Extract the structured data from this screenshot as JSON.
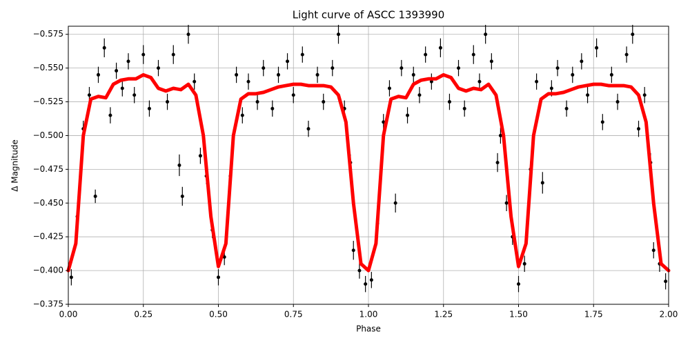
{
  "chart_data": {
    "type": "scatter",
    "title": "Light curve of ASCC 1393990",
    "xlabel": "Phase",
    "ylabel": "Δ Magnitude",
    "xlim": [
      0,
      2
    ],
    "ylim": [
      -0.375,
      -0.581
    ],
    "grid": true,
    "xticks": [
      {
        "value": 0,
        "label": "0.00"
      },
      0.25,
      {
        "value": 0.5,
        "label": "0.50"
      },
      0.75,
      {
        "value": 1,
        "label": "1.00"
      },
      1.25,
      {
        "value": 1.5,
        "label": "1.50"
      },
      1.75,
      {
        "value": 2,
        "label": "2.00"
      }
    ],
    "yticks": [
      {
        "value": -0.575,
        "label": "−0.575"
      },
      {
        "value": -0.55,
        "label": "−0.550"
      },
      {
        "value": -0.525,
        "label": "−0.525"
      },
      {
        "value": -0.5,
        "label": "−0.500"
      },
      {
        "value": -0.475,
        "label": "−0.475"
      },
      {
        "value": -0.45,
        "label": "−0.450"
      },
      {
        "value": -0.425,
        "label": "−0.425"
      },
      {
        "value": -0.4,
        "label": "−0.400"
      },
      {
        "value": -0.375,
        "label": "−0.375"
      }
    ],
    "series": [
      {
        "type": "errorbar",
        "color": "#000000",
        "x": [
          0.01,
          0.03,
          0.05,
          0.07,
          0.09,
          0.1,
          0.12,
          0.14,
          0.16,
          0.18,
          0.2,
          0.22,
          0.25,
          0.27,
          0.3,
          0.33,
          0.35,
          0.37,
          0.38,
          0.4,
          0.42,
          0.44,
          0.46,
          0.48,
          0.5,
          0.52,
          0.54,
          0.56,
          0.58,
          0.6,
          0.63,
          0.65,
          0.68,
          0.7,
          0.73,
          0.75,
          0.78,
          0.8,
          0.83,
          0.85,
          0.88,
          0.9,
          0.92,
          0.94,
          0.95,
          0.97,
          0.99,
          1.01,
          1.03,
          1.05,
          1.07,
          1.09,
          1.11,
          1.13,
          1.15,
          1.17,
          1.19,
          1.21,
          1.24,
          1.27,
          1.3,
          1.32,
          1.35,
          1.37,
          1.39,
          1.41,
          1.43,
          1.44,
          1.46,
          1.48,
          1.5,
          1.52,
          1.54,
          1.56,
          1.58,
          1.61,
          1.63,
          1.66,
          1.68,
          1.71,
          1.73,
          1.76,
          1.78,
          1.81,
          1.83,
          1.86,
          1.88,
          1.9,
          1.92,
          1.94,
          1.95,
          1.97,
          1.99
        ],
        "values": [
          -0.395,
          -0.44,
          -0.505,
          -0.53,
          -0.455,
          -0.545,
          -0.565,
          -0.515,
          -0.548,
          -0.535,
          -0.555,
          -0.53,
          -0.56,
          -0.52,
          -0.55,
          -0.525,
          -0.56,
          -0.478,
          -0.455,
          -0.575,
          -0.54,
          -0.485,
          -0.47,
          -0.43,
          -0.395,
          -0.41,
          -0.47,
          -0.545,
          -0.515,
          -0.54,
          -0.525,
          -0.55,
          -0.52,
          -0.545,
          -0.555,
          -0.53,
          -0.56,
          -0.505,
          -0.545,
          -0.525,
          -0.55,
          -0.575,
          -0.52,
          -0.48,
          -0.415,
          -0.4,
          -0.39,
          -0.393,
          -0.435,
          -0.51,
          -0.535,
          -0.45,
          -0.55,
          -0.515,
          -0.545,
          -0.53,
          -0.56,
          -0.54,
          -0.565,
          -0.525,
          -0.55,
          -0.52,
          -0.56,
          -0.54,
          -0.575,
          -0.555,
          -0.48,
          -0.5,
          -0.45,
          -0.425,
          -0.39,
          -0.405,
          -0.475,
          -0.54,
          -0.465,
          -0.535,
          -0.55,
          -0.52,
          -0.545,
          -0.555,
          -0.53,
          -0.565,
          -0.51,
          -0.545,
          -0.525,
          -0.56,
          -0.575,
          -0.505,
          -0.53,
          -0.48,
          -0.415,
          -0.405,
          -0.392
        ],
        "errors": [
          0.006,
          0.006,
          0.006,
          0.006,
          0.005,
          0.006,
          0.007,
          0.006,
          0.006,
          0.006,
          0.006,
          0.006,
          0.007,
          0.006,
          0.006,
          0.006,
          0.007,
          0.008,
          0.007,
          0.007,
          0.006,
          0.006,
          0.006,
          0.006,
          0.006,
          0.006,
          0.008,
          0.006,
          0.006,
          0.006,
          0.006,
          0.006,
          0.006,
          0.006,
          0.006,
          0.006,
          0.006,
          0.006,
          0.006,
          0.006,
          0.006,
          0.007,
          0.006,
          0.006,
          0.007,
          0.006,
          0.006,
          0.006,
          0.006,
          0.006,
          0.006,
          0.007,
          0.006,
          0.006,
          0.006,
          0.006,
          0.006,
          0.006,
          0.007,
          0.006,
          0.006,
          0.006,
          0.007,
          0.006,
          0.007,
          0.006,
          0.007,
          0.006,
          0.006,
          0.006,
          0.006,
          0.006,
          0.006,
          0.006,
          0.008,
          0.006,
          0.006,
          0.006,
          0.006,
          0.006,
          0.006,
          0.007,
          0.006,
          0.006,
          0.006,
          0.006,
          0.007,
          0.006,
          0.006,
          0.007,
          0.006,
          0.006,
          0.006
        ]
      },
      {
        "type": "line",
        "color": "#ff0000",
        "x": [
          0,
          0.025,
          0.05,
          0.075,
          0.1,
          0.125,
          0.15,
          0.175,
          0.2,
          0.225,
          0.25,
          0.275,
          0.3,
          0.325,
          0.35,
          0.375,
          0.4,
          0.425,
          0.45,
          0.475,
          0.5,
          0.525,
          0.55,
          0.575,
          0.6,
          0.625,
          0.65,
          0.675,
          0.7,
          0.725,
          0.75,
          0.775,
          0.8,
          0.825,
          0.85,
          0.875,
          0.9,
          0.925,
          0.95,
          0.975,
          1,
          1.025,
          1.05,
          1.075,
          1.1,
          1.125,
          1.15,
          1.175,
          1.2,
          1.225,
          1.25,
          1.275,
          1.3,
          1.325,
          1.35,
          1.375,
          1.4,
          1.425,
          1.45,
          1.475,
          1.5,
          1.525,
          1.55,
          1.575,
          1.6,
          1.625,
          1.65,
          1.675,
          1.7,
          1.725,
          1.75,
          1.775,
          1.8,
          1.825,
          1.85,
          1.875,
          1.9,
          1.925,
          1.95,
          1.975,
          2
        ],
        "values": [
          -0.4,
          -0.42,
          -0.5,
          -0.527,
          -0.529,
          -0.528,
          -0.538,
          -0.541,
          -0.542,
          -0.542,
          -0.545,
          -0.543,
          -0.535,
          -0.533,
          -0.535,
          -0.534,
          -0.538,
          -0.53,
          -0.5,
          -0.44,
          -0.403,
          -0.42,
          -0.5,
          -0.527,
          -0.531,
          -0.531,
          -0.532,
          -0.534,
          -0.536,
          -0.537,
          -0.538,
          -0.538,
          -0.537,
          -0.537,
          -0.537,
          -0.536,
          -0.53,
          -0.51,
          -0.45,
          -0.405,
          -0.4,
          -0.42,
          -0.5,
          -0.527,
          -0.529,
          -0.528,
          -0.538,
          -0.541,
          -0.542,
          -0.542,
          -0.545,
          -0.543,
          -0.535,
          -0.533,
          -0.535,
          -0.534,
          -0.538,
          -0.53,
          -0.5,
          -0.44,
          -0.403,
          -0.42,
          -0.5,
          -0.527,
          -0.531,
          -0.531,
          -0.532,
          -0.534,
          -0.536,
          -0.537,
          -0.538,
          -0.538,
          -0.537,
          -0.537,
          -0.537,
          -0.536,
          -0.53,
          -0.51,
          -0.45,
          -0.405,
          -0.4
        ]
      }
    ]
  }
}
